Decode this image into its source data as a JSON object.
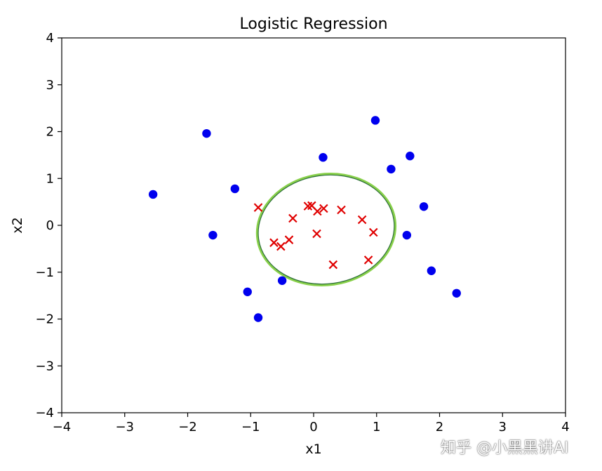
{
  "chart_data": {
    "type": "scatter",
    "title": "Logistic Regression",
    "xlabel": "x1",
    "ylabel": "x2",
    "xlim": [
      -4,
      4
    ],
    "ylim": [
      -4,
      4
    ],
    "xticks": [
      "−4",
      "−3",
      "−2",
      "−1",
      "0",
      "1",
      "2",
      "3",
      "4"
    ],
    "yticks": [
      "−4",
      "−3",
      "−2",
      "−1",
      "0",
      "1",
      "2",
      "3",
      "4"
    ],
    "grid": false,
    "series": [
      {
        "marker": "circle",
        "color": "#0000ee",
        "points": [
          [
            -2.55,
            0.66
          ],
          [
            -1.7,
            1.96
          ],
          [
            -1.6,
            -0.21
          ],
          [
            -1.25,
            0.78
          ],
          [
            -1.05,
            -1.42
          ],
          [
            -0.88,
            -1.97
          ],
          [
            -0.5,
            -1.18
          ],
          [
            0.15,
            1.45
          ],
          [
            0.98,
            2.24
          ],
          [
            1.23,
            1.2
          ],
          [
            1.53,
            1.48
          ],
          [
            1.48,
            -0.21
          ],
          [
            1.75,
            0.4
          ],
          [
            1.87,
            -0.97
          ],
          [
            2.27,
            -1.45
          ]
        ]
      },
      {
        "marker": "x",
        "color": "#e00000",
        "points": [
          [
            -0.88,
            0.38
          ],
          [
            -0.63,
            -0.37
          ],
          [
            -0.52,
            -0.45
          ],
          [
            -0.39,
            -0.31
          ],
          [
            -0.33,
            0.15
          ],
          [
            -0.09,
            0.41
          ],
          [
            -0.03,
            0.42
          ],
          [
            0.06,
            0.3
          ],
          [
            0.16,
            0.36
          ],
          [
            0.05,
            -0.18
          ],
          [
            0.44,
            0.33
          ],
          [
            0.31,
            -0.84
          ],
          [
            0.77,
            0.12
          ],
          [
            0.95,
            -0.15
          ],
          [
            0.87,
            -0.74
          ]
        ]
      }
    ],
    "decision_boundary": {
      "shape": "ellipse",
      "center": [
        0.2,
        -0.09
      ],
      "radius_x": 1.1,
      "radius_y": 1.18,
      "rotation_deg": -8,
      "colors": [
        "#88d04a",
        "#2e6f3a"
      ]
    }
  },
  "watermark": "知乎 @小黑黑讲AI"
}
